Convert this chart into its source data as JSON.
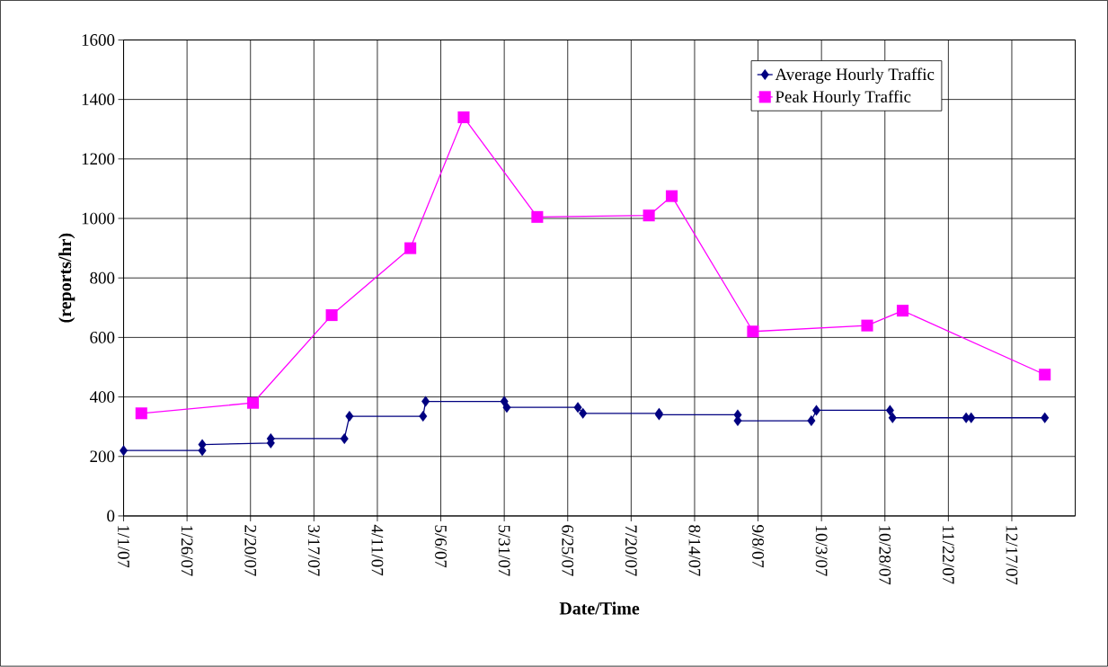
{
  "chart_data": {
    "type": "line",
    "xlabel": "Date/Time",
    "ylabel": "(reports/hr)",
    "xlim": [
      "2007-01-01",
      "2008-01-11"
    ],
    "xticks": [
      {
        "value": "2007-01-01",
        "label": "1/1/07"
      },
      {
        "value": "2007-01-26",
        "label": "1/26/07"
      },
      {
        "value": "2007-02-20",
        "label": "2/20/07"
      },
      {
        "value": "2007-03-17",
        "label": "3/17/07"
      },
      {
        "value": "2007-04-11",
        "label": "4/11/07"
      },
      {
        "value": "2007-05-06",
        "label": "5/6/07"
      },
      {
        "value": "2007-05-31",
        "label": "5/31/07"
      },
      {
        "value": "2007-06-25",
        "label": "6/25/07"
      },
      {
        "value": "2007-07-20",
        "label": "7/20/07"
      },
      {
        "value": "2007-08-14",
        "label": "8/14/07"
      },
      {
        "value": "2007-09-08",
        "label": "9/8/07"
      },
      {
        "value": "2007-10-03",
        "label": "10/3/07"
      },
      {
        "value": "2007-10-28",
        "label": "10/28/07"
      },
      {
        "value": "2007-11-22",
        "label": "11/22/07"
      },
      {
        "value": "2007-12-17",
        "label": "12/17/07"
      }
    ],
    "ylim": [
      0,
      1600
    ],
    "yticks": [
      0,
      200,
      400,
      600,
      800,
      1000,
      1200,
      1400,
      1600
    ],
    "grid": true,
    "legend": "top right",
    "series": [
      {
        "name": "Average Hourly Traffic",
        "color": "#000080",
        "marker": "diamond",
        "x": [
          "2007-01-01",
          "2007-02-01",
          "2007-02-01",
          "2007-02-28",
          "2007-02-28",
          "2007-03-29",
          "2007-03-31",
          "2007-04-29",
          "2007-04-30",
          "2007-05-31",
          "2007-06-01",
          "2007-06-29",
          "2007-07-01",
          "2007-07-31",
          "2007-07-31",
          "2007-08-31",
          "2007-08-31",
          "2007-09-29",
          "2007-10-01",
          "2007-10-30",
          "2007-10-31",
          "2007-11-29",
          "2007-12-01",
          "2007-12-30"
        ],
        "values": [
          220,
          220,
          240,
          245,
          260,
          260,
          335,
          335,
          385,
          385,
          365,
          365,
          345,
          345,
          340,
          340,
          320,
          320,
          355,
          355,
          330,
          330,
          330,
          330
        ]
      },
      {
        "name": "Peak Hourly Traffic",
        "color": "#ff00ff",
        "marker": "square",
        "x": [
          "2007-01-08",
          "2007-02-21",
          "2007-03-24",
          "2007-04-24",
          "2007-05-15",
          "2007-06-13",
          "2007-07-27",
          "2007-08-05",
          "2007-09-06",
          "2007-10-21",
          "2007-11-04",
          "2007-12-30"
        ],
        "values": [
          345,
          380,
          675,
          900,
          1340,
          1005,
          1010,
          1075,
          620,
          640,
          690,
          475
        ]
      }
    ]
  }
}
